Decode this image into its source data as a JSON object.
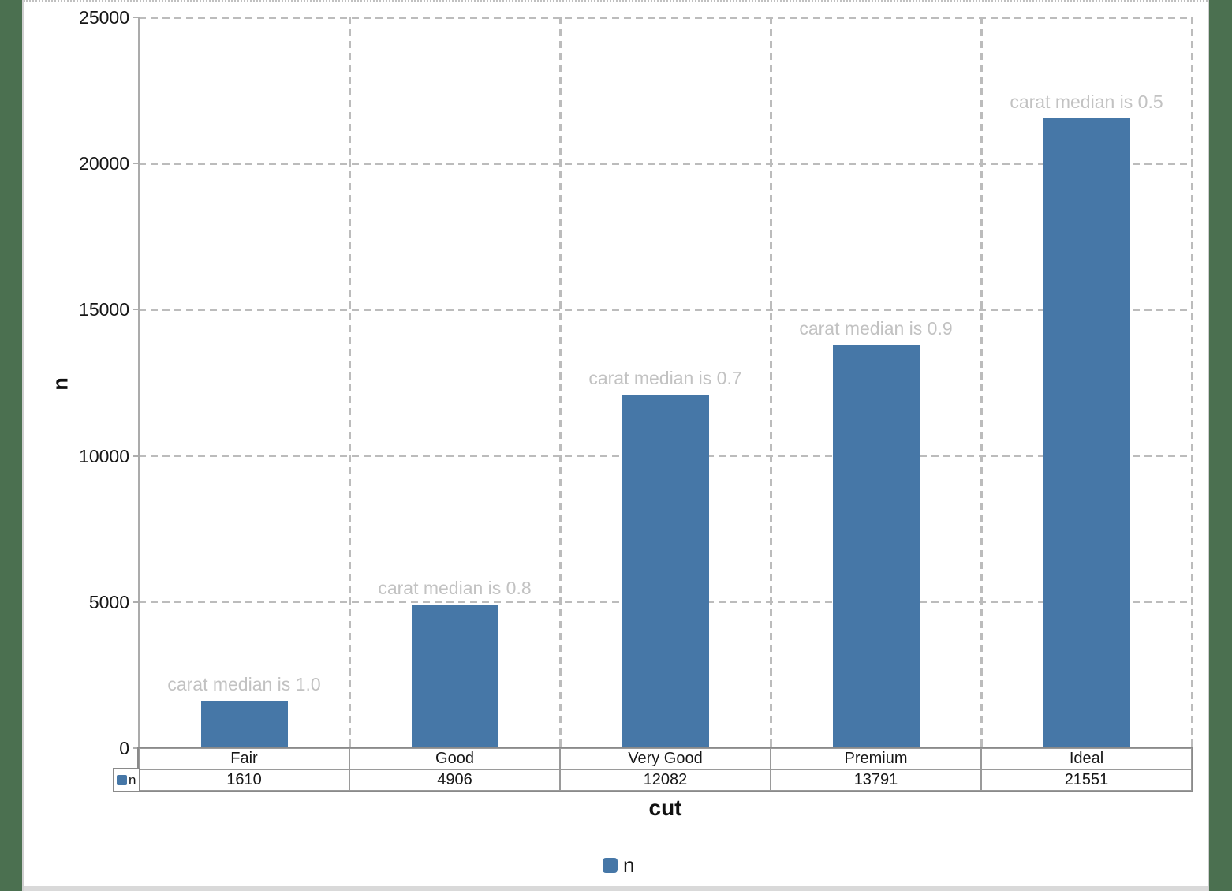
{
  "chart_data": {
    "type": "bar",
    "title": "",
    "xlabel": "cut",
    "ylabel": "n",
    "categories": [
      "Fair",
      "Good",
      "Very Good",
      "Premium",
      "Ideal"
    ],
    "series": [
      {
        "name": "n",
        "values": [
          1610,
          4906,
          12082,
          13791,
          21551
        ]
      }
    ],
    "bar_annotations": [
      "carat median is 1.0",
      "carat median is 0.8",
      "carat median is 0.7",
      "carat median is 0.9",
      "carat median is 0.5"
    ],
    "ylim": [
      0,
      25000
    ],
    "yticks": [
      0,
      5000,
      10000,
      15000,
      20000,
      25000
    ],
    "grid": true,
    "gridline_style": "dashed",
    "legend_position": "bottom",
    "legend_entries": [
      "n"
    ],
    "data_table_shown": true
  },
  "colors": {
    "bar": "#4677a7",
    "annotation_text": "#c2c2c2",
    "gridline": "#bcbcbc",
    "axis_line": "#ababab",
    "table_border": "#8a8a8a",
    "page_margin_green": "#4b7050",
    "edge_line_gray": "#cfcfcf",
    "bottom_strip_gray": "#d9d9d9"
  }
}
